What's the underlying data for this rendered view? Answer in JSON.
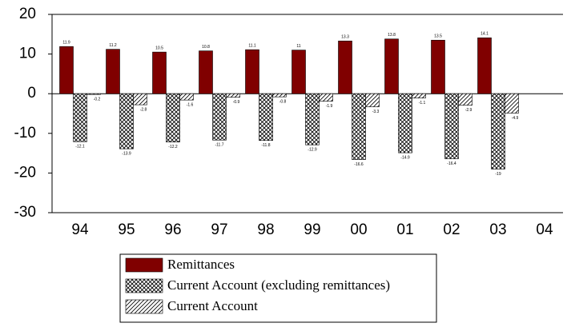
{
  "chart_data": {
    "type": "bar",
    "categories": [
      "94",
      "95",
      "96",
      "97",
      "98",
      "99",
      "00",
      "01",
      "02",
      "03",
      "04"
    ],
    "series": [
      {
        "name": "Remittances",
        "color": "#800000",
        "pattern": "solid",
        "values": [
          11.9,
          11.2,
          10.5,
          10.8,
          11.1,
          11.0,
          13.3,
          13.8,
          13.5,
          14.1,
          null
        ]
      },
      {
        "name": "Current Account (excluding remittances)",
        "color": "#000000",
        "pattern": "crosshatch",
        "values": [
          -12.1,
          -13.9,
          -12.2,
          -11.7,
          -11.8,
          -12.9,
          -16.6,
          -14.9,
          -16.4,
          -19.0,
          null
        ]
      },
      {
        "name": "Current Account",
        "color": "#000000",
        "pattern": "diagonal",
        "values": [
          -0.2,
          -2.8,
          -1.6,
          -0.9,
          -0.8,
          -1.9,
          -3.3,
          -1.1,
          -2.9,
          -4.9,
          null
        ]
      }
    ],
    "ylim": [
      -30,
      20
    ],
    "yticks": [
      -30,
      -20,
      -10,
      0,
      10,
      20
    ]
  }
}
